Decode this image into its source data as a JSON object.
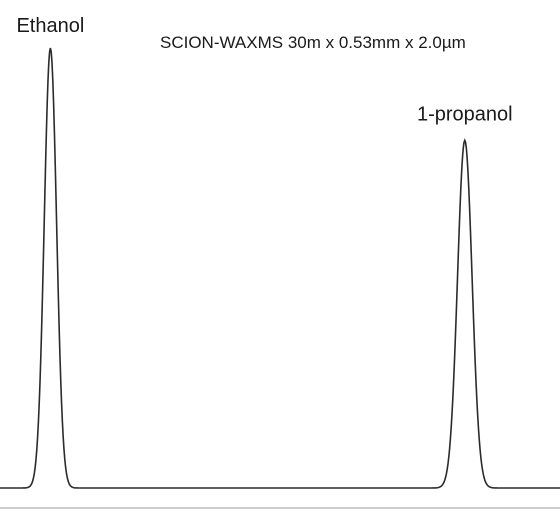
{
  "chart_data": {
    "type": "line",
    "title": "",
    "subtitle": "SCION-WAXMS 30m x 0.53mm x 2.0µm",
    "xlabel": "",
    "ylabel": "",
    "grid": false,
    "legend": "none",
    "series": [
      {
        "color": "#2b2b2b",
        "peaks": [
          {
            "name": "Ethanol",
            "retention": 0.09,
            "height": 1.0,
            "width": 0.011
          },
          {
            "name": "1-propanol",
            "retention": 0.83,
            "height": 0.79,
            "width": 0.013
          }
        ]
      }
    ],
    "x_range": [
      0,
      1
    ],
    "y_range": [
      0,
      1
    ]
  }
}
